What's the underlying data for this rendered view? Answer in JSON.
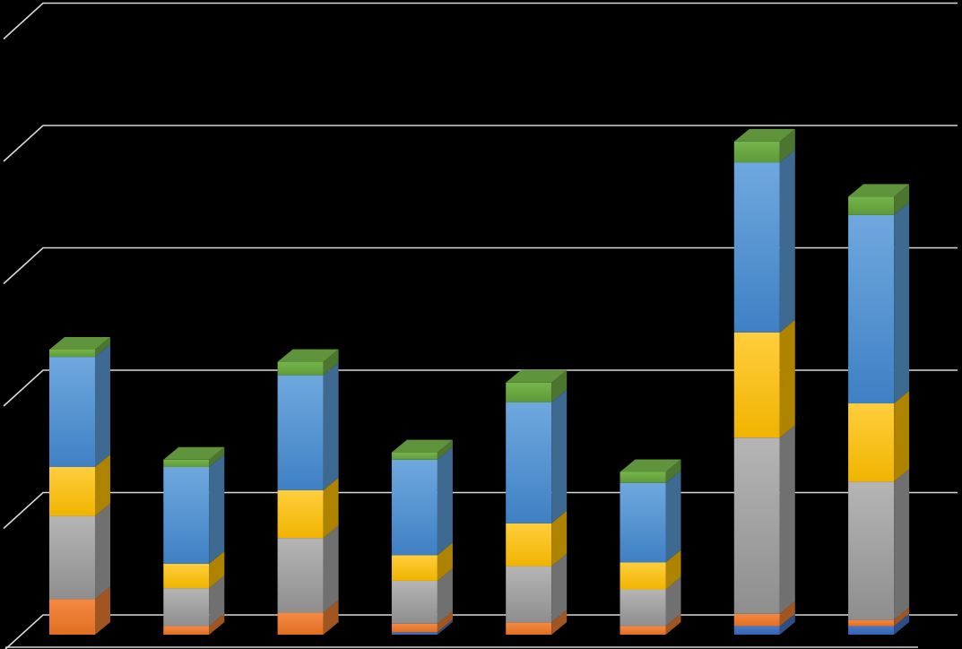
{
  "chart_data": {
    "type": "bar",
    "stacked": true,
    "three_d": true,
    "grid": true,
    "legend": "none",
    "categories": [
      "",
      "",
      "",
      "",
      "",
      "",
      "",
      ""
    ],
    "ylim": [
      0,
      5
    ],
    "series": [
      {
        "color": "#4472C4",
        "values": [
          0.0,
          0.0,
          0.0,
          0.02,
          0.0,
          0.0,
          0.07,
          0.07
        ]
      },
      {
        "color": "#ED7D31",
        "values": [
          0.29,
          0.07,
          0.18,
          0.07,
          0.1,
          0.07,
          0.1,
          0.05
        ]
      },
      {
        "color": "#A5A5A5",
        "values": [
          0.68,
          0.31,
          0.61,
          0.35,
          0.46,
          0.3,
          1.44,
          1.13
        ]
      },
      {
        "color": "#FFC000",
        "values": [
          0.4,
          0.2,
          0.39,
          0.21,
          0.35,
          0.22,
          0.86,
          0.64
        ]
      },
      {
        "color": "#5B9BD5",
        "values": [
          0.9,
          0.79,
          0.94,
          0.78,
          0.99,
          0.65,
          1.39,
          1.54
        ]
      },
      {
        "color": "#70AD47",
        "values": [
          0.06,
          0.06,
          0.11,
          0.06,
          0.16,
          0.09,
          0.17,
          0.15
        ]
      }
    ]
  }
}
